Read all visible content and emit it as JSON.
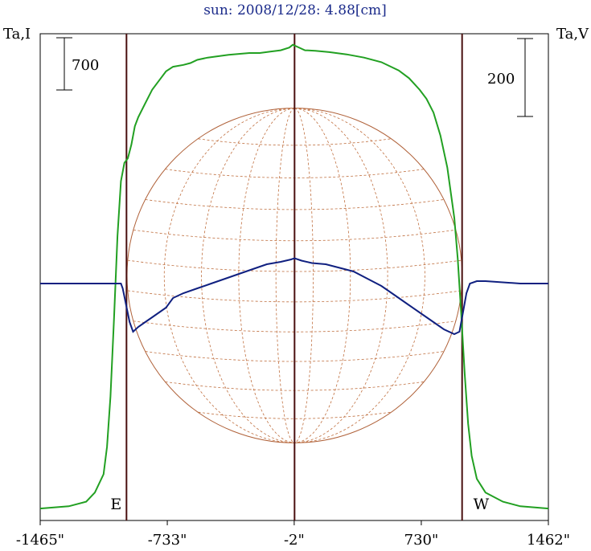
{
  "chart_data": {
    "type": "line",
    "title": "sun: 2008/12/28: 4.88[cm]",
    "left_axis_label": "Ta,I",
    "right_axis_label": "Ta,V",
    "x_ticks": [
      {
        "value": -1465,
        "label": "-1465\""
      },
      {
        "value": -733,
        "label": "-733\""
      },
      {
        "value": -2,
        "label": "-2\""
      },
      {
        "value": 730,
        "label": "730\""
      },
      {
        "value": 1462,
        "label": "1462\""
      }
    ],
    "xlim": [
      -1465,
      1462
    ],
    "limb_markers": [
      {
        "value": -968,
        "label": "E"
      },
      {
        "value": 0,
        "label": ""
      },
      {
        "value": 965,
        "label": "W"
      }
    ],
    "scale_bars": [
      {
        "label": "700",
        "applies_to": "Ta,I",
        "magnitude": 700
      },
      {
        "label": "200",
        "applies_to": "Ta,V",
        "magnitude": 200
      }
    ],
    "disk": {
      "center_x": 0,
      "radius": 965,
      "meridian_count": 9,
      "parallel_count": 11
    },
    "series": [
      {
        "name": "Ta,I",
        "color": "#22a022",
        "points": [
          [
            -1465,
            0.005
          ],
          [
            -1300,
            0.01
          ],
          [
            -1200,
            0.02
          ],
          [
            -1150,
            0.04
          ],
          [
            -1100,
            0.08
          ],
          [
            -1080,
            0.14
          ],
          [
            -1060,
            0.25
          ],
          [
            -1040,
            0.42
          ],
          [
            -1020,
            0.6
          ],
          [
            -1000,
            0.72
          ],
          [
            -980,
            0.76
          ],
          [
            -960,
            0.77
          ],
          [
            -940,
            0.8
          ],
          [
            -920,
            0.84
          ],
          [
            -900,
            0.86
          ],
          [
            -860,
            0.89
          ],
          [
            -820,
            0.92
          ],
          [
            -780,
            0.94
          ],
          [
            -740,
            0.96
          ],
          [
            -700,
            0.97
          ],
          [
            -640,
            0.974
          ],
          [
            -600,
            0.978
          ],
          [
            -560,
            0.985
          ],
          [
            -500,
            0.99
          ],
          [
            -440,
            0.993
          ],
          [
            -380,
            0.996
          ],
          [
            -320,
            0.998
          ],
          [
            -260,
            1.0
          ],
          [
            -200,
            1.0
          ],
          [
            -140,
            1.003
          ],
          [
            -80,
            1.006
          ],
          [
            -30,
            1.012
          ],
          [
            -10,
            1.018
          ],
          [
            20,
            1.013
          ],
          [
            60,
            1.006
          ],
          [
            120,
            1.005
          ],
          [
            200,
            1.002
          ],
          [
            300,
            0.997
          ],
          [
            400,
            0.99
          ],
          [
            500,
            0.98
          ],
          [
            600,
            0.962
          ],
          [
            660,
            0.945
          ],
          [
            720,
            0.92
          ],
          [
            760,
            0.9
          ],
          [
            800,
            0.87
          ],
          [
            840,
            0.82
          ],
          [
            880,
            0.75
          ],
          [
            920,
            0.64
          ],
          [
            940,
            0.55
          ],
          [
            960,
            0.43
          ],
          [
            980,
            0.3
          ],
          [
            1000,
            0.19
          ],
          [
            1020,
            0.12
          ],
          [
            1050,
            0.07
          ],
          [
            1100,
            0.04
          ],
          [
            1200,
            0.02
          ],
          [
            1300,
            0.01
          ],
          [
            1462,
            0.005
          ]
        ]
      },
      {
        "name": "Ta,V",
        "color": "#102080",
        "points": [
          [
            -1465,
            0.0
          ],
          [
            -1100,
            0.0
          ],
          [
            -1000,
            0.0
          ],
          [
            -990,
            -0.02
          ],
          [
            -970,
            -0.09
          ],
          [
            -950,
            -0.16
          ],
          [
            -930,
            -0.2
          ],
          [
            -900,
            -0.18
          ],
          [
            -860,
            -0.16
          ],
          [
            -820,
            -0.14
          ],
          [
            -780,
            -0.12
          ],
          [
            -740,
            -0.1
          ],
          [
            -700,
            -0.06
          ],
          [
            -640,
            -0.04
          ],
          [
            -560,
            -0.02
          ],
          [
            -480,
            0.0
          ],
          [
            -400,
            0.02
          ],
          [
            -320,
            0.04
          ],
          [
            -240,
            0.06
          ],
          [
            -160,
            0.08
          ],
          [
            -80,
            0.09
          ],
          [
            -20,
            0.1
          ],
          [
            0,
            0.105
          ],
          [
            40,
            0.095
          ],
          [
            100,
            0.085
          ],
          [
            180,
            0.08
          ],
          [
            260,
            0.065
          ],
          [
            340,
            0.05
          ],
          [
            420,
            0.02
          ],
          [
            500,
            -0.01
          ],
          [
            580,
            -0.05
          ],
          [
            660,
            -0.09
          ],
          [
            740,
            -0.13
          ],
          [
            800,
            -0.16
          ],
          [
            860,
            -0.19
          ],
          [
            920,
            -0.21
          ],
          [
            950,
            -0.2
          ],
          [
            970,
            -0.12
          ],
          [
            990,
            -0.04
          ],
          [
            1010,
            0.0
          ],
          [
            1050,
            0.01
          ],
          [
            1100,
            0.01
          ],
          [
            1300,
            0.0
          ],
          [
            1462,
            0.0
          ]
        ]
      }
    ]
  }
}
